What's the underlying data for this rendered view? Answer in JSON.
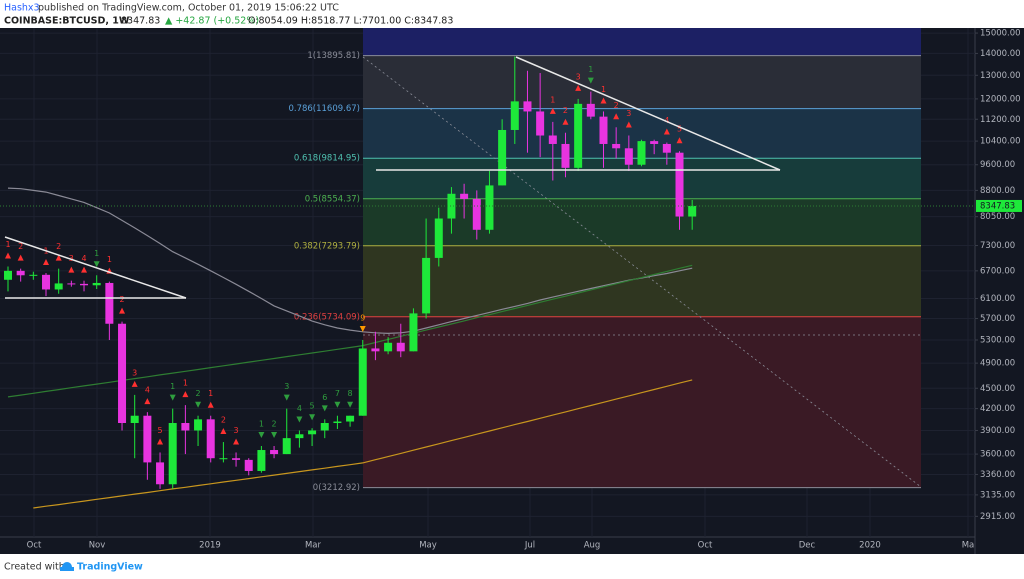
{
  "header": {
    "author": "Hashx3",
    "published": "published on TradingView.com, October 01, 2019 15:06:22 UTC",
    "symbol": "COINBASE:BTCUSD, 1W",
    "last": "8347.83",
    "change": "▲ +42.87 (+0.52%)",
    "ohlc": "O:8054.09 H:8518.77 L:7701.00 C:8347.83"
  },
  "footer": {
    "created": "Created with",
    "brand": "TradingView"
  },
  "chart_data": {
    "type": "candlestick",
    "log_scale": true,
    "grid": true,
    "up_color": "#1ee83a",
    "down_color": "#e834e0",
    "ylim": [
      2718,
      15260
    ],
    "yticks": [
      {
        "value": 15000,
        "label": "15000.00"
      },
      {
        "value": 14000,
        "label": "14000.00"
      },
      {
        "value": 13000,
        "label": "13000.00"
      },
      {
        "value": 12000,
        "label": "12000.00"
      },
      {
        "value": 11200,
        "label": "11200.00"
      },
      {
        "value": 10400,
        "label": "10400.00"
      },
      {
        "value": 9600,
        "label": "9600.00"
      },
      {
        "value": 8800,
        "label": "8800.00"
      },
      {
        "value": 8050,
        "label": "8050.00"
      },
      {
        "value": 7300,
        "label": "7300.00"
      },
      {
        "value": 6700,
        "label": "6700.00"
      },
      {
        "value": 6100,
        "label": "6100.00"
      },
      {
        "value": 5700,
        "label": "5700.00"
      },
      {
        "value": 5300,
        "label": "5300.00"
      },
      {
        "value": 4900,
        "label": "4900.00"
      },
      {
        "value": 4500,
        "label": "4500.00"
      },
      {
        "value": 4200,
        "label": "4200.00"
      },
      {
        "value": 3900,
        "label": "3900.00"
      },
      {
        "value": 3600,
        "label": "3600.00"
      },
      {
        "value": 3360,
        "label": "3360.00"
      },
      {
        "value": 3135,
        "label": "3135.00"
      },
      {
        "value": 2915,
        "label": "2915.00"
      }
    ],
    "xlabels": [
      "Oct",
      "Nov",
      "2019",
      "Mar",
      "May",
      "Jul",
      "Aug",
      "Oct",
      "Dec",
      "2020",
      "Ma"
    ],
    "open": [
      6500,
      6700,
      6600,
      6610,
      6290,
      6420,
      6410,
      6380,
      6430,
      5600,
      4000,
      4100,
      3500,
      3250,
      4000,
      3900,
      4050,
      3550,
      3550,
      3530,
      3400,
      3650,
      3600,
      3800,
      3850,
      3900,
      4000,
      4020,
      4100,
      5150,
      5100,
      5250,
      5100,
      5800,
      7000,
      8000,
      8700,
      8550,
      7700,
      8950,
      10800,
      11900,
      11500,
      10600,
      10300,
      9500,
      11800,
      11300,
      10300,
      10150,
      9600,
      10400,
      10300,
      10000,
      8054.09
    ],
    "high": [
      6800,
      6750,
      6680,
      6650,
      6750,
      6480,
      6480,
      6600,
      6460,
      5640,
      4400,
      4150,
      3620,
      4200,
      4250,
      4100,
      4100,
      3750,
      3620,
      3550,
      3700,
      3700,
      4200,
      3900,
      3930,
      4050,
      4100,
      4100,
      5300,
      5450,
      5350,
      5600,
      5900,
      8000,
      8300,
      8900,
      9000,
      8800,
      9400,
      11200,
      13850,
      13200,
      13100,
      11100,
      10700,
      12000,
      12300,
      11500,
      10900,
      10600,
      10450,
      10450,
      10350,
      10050,
      8518.77
    ],
    "low": [
      6250,
      6460,
      6500,
      6150,
      6200,
      6350,
      6250,
      6300,
      5300,
      3900,
      3550,
      3300,
      3200,
      3200,
      3600,
      3700,
      3500,
      3500,
      3450,
      3350,
      3380,
      3550,
      3600,
      3680,
      3700,
      3800,
      3920,
      3950,
      4100,
      4950,
      5050,
      5000,
      5100,
      5700,
      6800,
      7600,
      8000,
      7450,
      7600,
      8950,
      10300,
      10000,
      9850,
      9100,
      9200,
      9400,
      11200,
      9500,
      9800,
      9400,
      9550,
      9950,
      9600,
      7700,
      7701
    ],
    "close": [
      6700,
      6600,
      6610,
      6290,
      6420,
      6410,
      6380,
      6430,
      5600,
      4000,
      4100,
      3500,
      3250,
      4000,
      3900,
      4050,
      3550,
      3550,
      3530,
      3400,
      3650,
      3600,
      3800,
      3850,
      3900,
      4000,
      4020,
      4100,
      5150,
      5100,
      5250,
      5100,
      5800,
      7000,
      8000,
      8700,
      8550,
      7700,
      8950,
      10800,
      11900,
      11500,
      10600,
      10300,
      9500,
      11800,
      11300,
      10300,
      10150,
      9600,
      10400,
      10300,
      10000,
      8054.09,
      8347.83
    ],
    "td_sell": [
      1,
      2,
      null,
      1,
      2,
      3,
      4,
      null,
      1,
      2,
      3,
      4,
      5,
      null,
      1,
      null,
      1,
      2,
      3,
      null,
      null,
      null,
      null,
      null,
      null,
      null,
      null,
      null,
      null,
      null,
      null,
      null,
      null,
      null,
      null,
      null,
      null,
      null,
      null,
      null,
      null,
      null,
      null,
      1,
      2,
      3,
      null,
      1,
      2,
      3,
      null,
      null,
      4,
      5,
      null
    ],
    "td_buy": [
      null,
      null,
      null,
      null,
      null,
      null,
      null,
      1,
      null,
      null,
      null,
      null,
      null,
      1,
      null,
      2,
      null,
      null,
      null,
      null,
      1,
      2,
      3,
      4,
      5,
      6,
      7,
      8,
      9,
      null,
      null,
      null,
      null,
      null,
      null,
      null,
      null,
      null,
      null,
      null,
      null,
      null,
      null,
      null,
      null,
      null,
      1,
      null,
      null,
      null,
      null,
      null,
      null,
      null,
      null
    ],
    "td_sell_color": "#ff3030",
    "td_buy_color": "#2e9e3e",
    "td_nine_color": "#ff9800",
    "lines": [
      {
        "color": "#8a8a96",
        "values": [
          8870,
          8850,
          8800,
          8750,
          8650,
          8550,
          8450,
          8300,
          8150,
          7950,
          7750,
          7550,
          7350,
          7150,
          7000,
          6850,
          6700,
          6550,
          6400,
          6250,
          6100,
          5950,
          5850,
          5750,
          5650,
          5580,
          5520,
          5480,
          5450,
          5430,
          5420,
          5430,
          5460,
          5520,
          5580,
          5640,
          5700,
          5760,
          5820,
          5880,
          5940,
          6000,
          6070,
          6130,
          6190,
          6250,
          6310,
          6370,
          6430,
          6490,
          6540,
          6590,
          6640,
          6700,
          6760
        ]
      },
      {
        "color": "#2e7d32",
        "values": [
          4370,
          4397,
          4424,
          4452,
          4480,
          4508,
          4536,
          4564,
          4592,
          4621,
          4650,
          4679,
          4708,
          4737,
          4767,
          4796,
          4826,
          4856,
          4886,
          4917,
          4947,
          4978,
          5009,
          5040,
          5072,
          5103,
          5135,
          5167,
          5200,
          5255,
          5310,
          5366,
          5423,
          5480,
          5538,
          5596,
          5655,
          5715,
          5775,
          5836,
          5897,
          5959,
          6022,
          6085,
          6149,
          6214,
          6280,
          6346,
          6413,
          6480,
          6548,
          6617,
          6687,
          6757,
          6828
        ]
      },
      {
        "color": "#c8961e",
        "values": [
          null,
          null,
          2999,
          3017,
          3034,
          3052,
          3070,
          3088,
          3106,
          3124,
          3143,
          3161,
          3180,
          3199,
          3217,
          3236,
          3255,
          3275,
          3294,
          3313,
          3333,
          3353,
          3372,
          3392,
          3412,
          3432,
          3453,
          3473,
          3494,
          3532,
          3570,
          3609,
          3648,
          3688,
          3728,
          3769,
          3810,
          3851,
          3893,
          3935,
          3978,
          4021,
          4065,
          4109,
          4154,
          4199,
          4245,
          4291,
          4338,
          4385,
          4433,
          4481,
          4530,
          4579,
          4629
        ]
      }
    ],
    "fib_top_color": "#1c2064",
    "fib_levels": [
      {
        "value": 13895.81,
        "label": "1(13895.81)",
        "color": "#8a8d98",
        "band": "#2a2d37"
      },
      {
        "value": 11609.67,
        "label": "0.786(11609.67)",
        "color": "#5aa0d8",
        "band": "#1b3347"
      },
      {
        "value": 9814.95,
        "label": "0.618(9814.95)",
        "color": "#4fc0b0",
        "band": "#173c3b"
      },
      {
        "value": 8554.37,
        "label": "0.5(8554.37)",
        "color": "#4caf50",
        "band": "#1b3a28"
      },
      {
        "value": 7293.79,
        "label": "0.382(7293.79)",
        "color": "#b0b040",
        "band": "#2f3620"
      },
      {
        "value": 5734.09,
        "label": "0.236(5734.09)",
        "color": "#e04040",
        "band": "#3a1a25"
      },
      {
        "value": 3212.92,
        "label": "0(3212.92)",
        "color": "#8a8d98"
      }
    ],
    "last_price": {
      "value": 8347.83,
      "label": "8347.83"
    }
  }
}
